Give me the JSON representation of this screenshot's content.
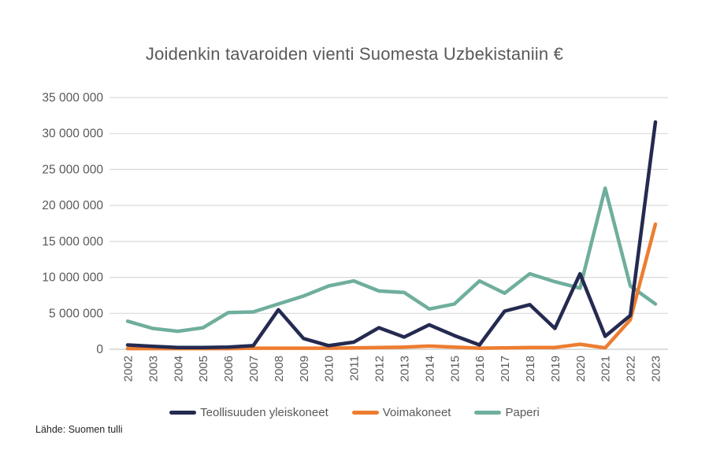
{
  "chart_data": {
    "type": "line",
    "title": "Joidenkin tavaroiden vienti Suomesta Uzbekistaniin €",
    "xlabel": "",
    "ylabel": "",
    "x": [
      "2002",
      "2003",
      "2004",
      "2005",
      "2006",
      "2007",
      "2008",
      "2009",
      "2010",
      "2011",
      "2012",
      "2013",
      "2014",
      "2015",
      "2016",
      "2017",
      "2018",
      "2019",
      "2020",
      "2021",
      "2022",
      "2023"
    ],
    "ylim": [
      0,
      35000000
    ],
    "yticks": [
      {
        "value": 0,
        "label": "0"
      },
      {
        "value": 5000000,
        "label": "5 000 000"
      },
      {
        "value": 10000000,
        "label": "10 000 000"
      },
      {
        "value": 15000000,
        "label": "15 000 000"
      },
      {
        "value": 20000000,
        "label": "20 000 000"
      },
      {
        "value": 25000000,
        "label": "25 000 000"
      },
      {
        "value": 30000000,
        "label": "30 000 000"
      },
      {
        "value": 35000000,
        "label": "35 000 000"
      }
    ],
    "grid": "horizontal",
    "legend_position": "bottom",
    "series": [
      {
        "name": "Teollisuuden yleiskoneet",
        "color": "#242A50",
        "values": [
          600000,
          400000,
          250000,
          250000,
          300000,
          500000,
          5500000,
          1500000,
          500000,
          1000000,
          3000000,
          1700000,
          3400000,
          1900000,
          600000,
          5300000,
          6200000,
          2900000,
          10500000,
          1800000,
          4700000,
          31600000
        ]
      },
      {
        "name": "Voimakoneet",
        "color": "#ED7D31",
        "values": [
          100000,
          100000,
          100000,
          100000,
          100000,
          150000,
          150000,
          150000,
          150000,
          200000,
          250000,
          300000,
          450000,
          300000,
          150000,
          200000,
          250000,
          250000,
          700000,
          200000,
          4100000,
          17400000
        ]
      },
      {
        "name": "Paperi",
        "color": "#6FAE9D",
        "values": [
          3900000,
          2900000,
          2500000,
          3000000,
          5100000,
          5200000,
          6300000,
          7400000,
          8800000,
          9500000,
          8100000,
          7900000,
          5600000,
          6300000,
          9500000,
          7800000,
          10500000,
          9400000,
          8500000,
          22400000,
          8800000,
          6300000
        ]
      }
    ]
  },
  "source": "Lähde: Suomen tulli",
  "colors": {
    "grid": "#D9D9D9",
    "axis_line": "#C9C9C9",
    "axis_text": "#595959",
    "title_text": "#595959",
    "legend_text": "#595959",
    "source_text": "#262626",
    "background": "#FFFFFF"
  }
}
